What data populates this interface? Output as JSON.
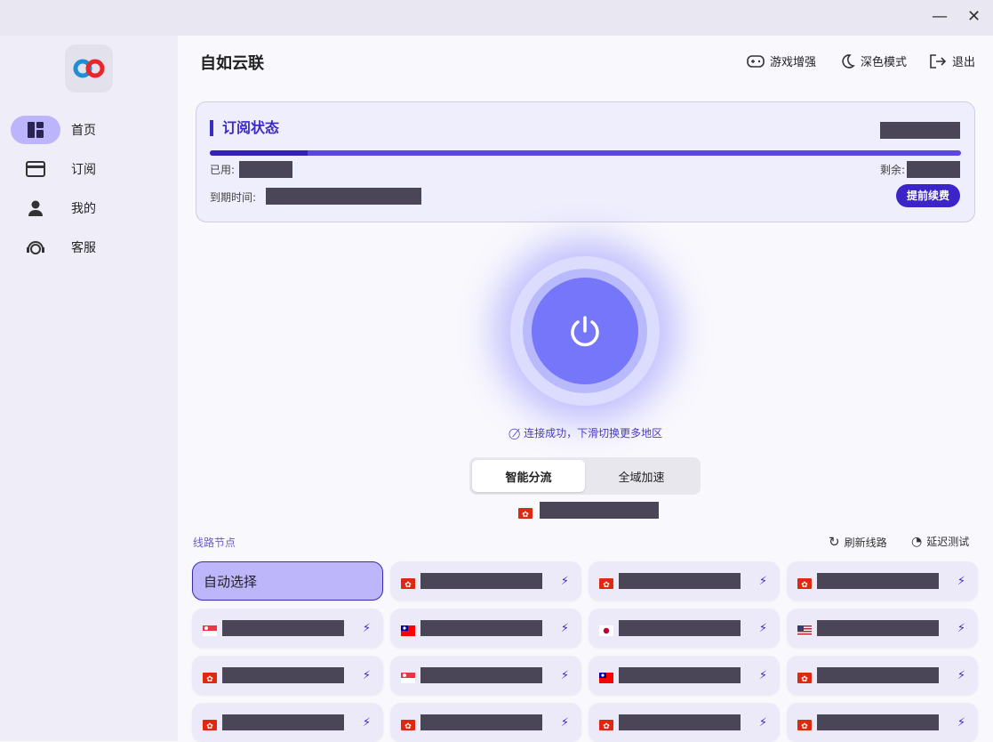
{
  "window": {
    "minimize": "—",
    "close": "✕"
  },
  "sidebar": {
    "items": [
      {
        "label": "首页",
        "icon": "dashboard-icon",
        "active": true
      },
      {
        "label": "订阅",
        "icon": "card-icon"
      },
      {
        "label": "我的",
        "icon": "person-icon"
      },
      {
        "label": "客服",
        "icon": "support-agent-icon"
      }
    ]
  },
  "header": {
    "title": "自如云联",
    "game_boost": "游戏增强",
    "dark_mode": "深色模式",
    "logout": "退出"
  },
  "subscription": {
    "title": "订阅状态",
    "used_label": "已用:",
    "remaining_label": "剩余:",
    "expire_label": "到期时间:",
    "renew": "提前续费",
    "usage_fraction": 0.13
  },
  "connection": {
    "status": "连接成功，下滑切换更多地区",
    "modes": [
      "智能分流",
      "全域加速"
    ],
    "active_mode": 0,
    "selected_flag": "hk"
  },
  "nodes": {
    "title": "线路节点",
    "refresh": "刷新线路",
    "latency_test": "延迟测试",
    "auto": "自动选择",
    "flags": [
      "hk",
      "hk",
      "hk",
      "sg",
      "tw",
      "jp",
      "us",
      "hk",
      "sg",
      "tw",
      "hk",
      "hk",
      "hk",
      "hk",
      "hk"
    ]
  },
  "colors": {
    "accent": "#3b2bc4",
    "power": "#7676fb",
    "selected": "#bdb6fb"
  }
}
